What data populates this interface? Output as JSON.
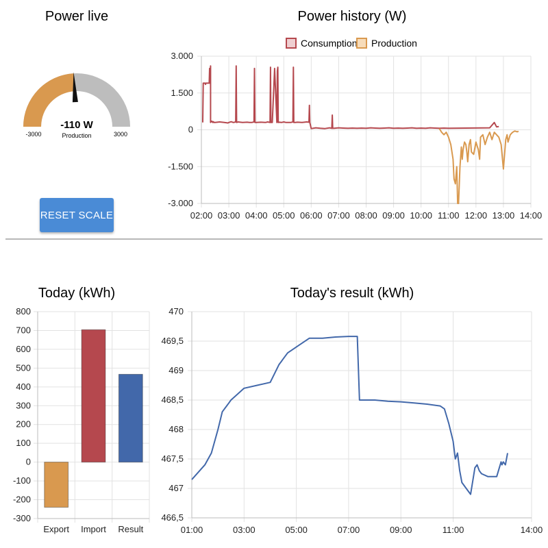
{
  "gauge": {
    "title": "Power live",
    "value_text": "-110 W",
    "sub_label": "Production",
    "min_label": "-3000",
    "max_label": "3000",
    "value": -110,
    "min": -3000,
    "max": 3000,
    "colors": {
      "fill": "#d9994f",
      "track": "#bdbdbd",
      "needle": "#111111"
    }
  },
  "reset_button": {
    "label": "RESET SCALE",
    "color": "#4a8bd6"
  },
  "chart_data": [
    {
      "id": "power_history",
      "type": "line",
      "title": "Power history (W)",
      "legend_position": "top-center",
      "grid": true,
      "x_ticks": [
        "02:00",
        "03:00",
        "04:00",
        "05:00",
        "06:00",
        "07:00",
        "08:00",
        "09:00",
        "10:00",
        "11:00",
        "12:00",
        "13:00",
        "14:00"
      ],
      "xlim": [
        "02:00",
        "14:00"
      ],
      "y_ticks": [
        "3.000",
        "1.500",
        "0",
        "-1.500",
        "-3.000"
      ],
      "ylim": [
        -3000,
        3000
      ],
      "series": [
        {
          "name": "Consumption",
          "color": "#b5484e",
          "fill": "#efcfd1",
          "x": [
            "02:03",
            "02:03",
            "02:04",
            "02:05",
            "02:06",
            "02:07",
            "02:08",
            "02:09",
            "02:10",
            "02:11",
            "02:12",
            "02:13",
            "02:14",
            "02:15",
            "02:16",
            "02:17",
            "02:18",
            "02:19",
            "02:20",
            "02:20",
            "02:22",
            "02:23",
            "02:25",
            "02:26",
            "02:28",
            "02:30",
            "02:40",
            "02:45",
            "02:50",
            "02:58",
            "03:00",
            "03:05",
            "03:10",
            "03:15",
            "03:16",
            "03:17",
            "03:20",
            "03:30",
            "03:40",
            "03:45",
            "03:50",
            "03:55",
            "03:56",
            "03:57",
            "04:00",
            "04:10",
            "04:20",
            "04:25",
            "04:30",
            "04:31",
            "04:32",
            "04:35",
            "04:40",
            "04:45",
            "04:46",
            "04:47",
            "04:48",
            "04:49",
            "04:50",
            "04:55",
            "05:00",
            "05:05",
            "05:10",
            "05:15",
            "05:20",
            "05:21",
            "05:22",
            "05:25",
            "05:30",
            "05:40",
            "05:50",
            "05:55",
            "05:56",
            "05:57",
            "06:00",
            "06:10",
            "06:20",
            "06:30",
            "06:40",
            "06:45",
            "06:46",
            "06:47",
            "06:50",
            "07:00",
            "07:10",
            "07:20",
            "07:30",
            "07:40",
            "07:50",
            "08:00",
            "08:10",
            "08:20",
            "08:30",
            "08:40",
            "08:50",
            "09:00",
            "09:10",
            "09:20",
            "09:30",
            "09:40",
            "09:50",
            "10:00",
            "10:10",
            "10:20",
            "10:30",
            "10:40",
            "10:50",
            "11:00",
            "12:30",
            "12:40",
            "12:45",
            "12:50"
          ],
          "y": [
            300,
            400,
            1900,
            1900,
            1900,
            1900,
            1900,
            1850,
            1900,
            1900,
            1900,
            1900,
            1900,
            1900,
            1900,
            1900,
            2500,
            1900,
            2600,
            300,
            350,
            350,
            300,
            330,
            300,
            300,
            320,
            310,
            300,
            280,
            300,
            330,
            300,
            320,
            2600,
            300,
            320,
            300,
            310,
            300,
            300,
            320,
            2500,
            300,
            300,
            310,
            300,
            320,
            300,
            2550,
            300,
            300,
            2500,
            300,
            2400,
            2550,
            300,
            300,
            310,
            300,
            320,
            300,
            300,
            300,
            320,
            2550,
            300,
            300,
            310,
            300,
            320,
            310,
            1000,
            300,
            50,
            80,
            60,
            50,
            80,
            60,
            600,
            60,
            60,
            80,
            70,
            60,
            70,
            60,
            70,
            60,
            80,
            70,
            60,
            70,
            80,
            60,
            70,
            60,
            70,
            80,
            60,
            70,
            60,
            80,
            70,
            60,
            70,
            60,
            80,
            300,
            120,
            130
          ]
        },
        {
          "name": "Production",
          "color": "#d9994f",
          "fill": "#f7dcba",
          "x": [
            "10:40",
            "10:45",
            "10:50",
            "10:55",
            "11:00",
            "11:05",
            "11:10",
            "11:12",
            "11:15",
            "11:18",
            "11:20",
            "11:22",
            "11:25",
            "11:28",
            "11:30",
            "11:32",
            "11:35",
            "11:38",
            "11:40",
            "11:42",
            "11:45",
            "11:48",
            "11:50",
            "11:55",
            "12:00",
            "12:05",
            "12:08",
            "12:10",
            "12:15",
            "12:20",
            "12:25",
            "12:30",
            "12:35",
            "12:40",
            "12:45",
            "12:50",
            "12:55",
            "13:00",
            "13:05",
            "13:08",
            "13:10",
            "13:15",
            "13:20",
            "13:25",
            "13:30",
            "13:33"
          ],
          "y": [
            50,
            -100,
            -200,
            -100,
            -300,
            -600,
            -1200,
            -2000,
            -2200,
            -1500,
            -3000,
            -3000,
            -1500,
            -700,
            -1200,
            -800,
            -500,
            -600,
            -900,
            -1300,
            -600,
            -400,
            -900,
            -1000,
            -500,
            -800,
            -1200,
            -300,
            -200,
            -600,
            -300,
            -100,
            -400,
            -100,
            -200,
            -300,
            -600,
            -1600,
            -400,
            -200,
            -500,
            -200,
            -100,
            -50,
            -80,
            -60
          ]
        }
      ]
    },
    {
      "id": "today",
      "type": "bar",
      "title": "Today (kWh)",
      "grid": true,
      "categories": [
        "Export",
        "Import",
        "Result"
      ],
      "values": [
        -240,
        704,
        467
      ],
      "colors": [
        "#d9994f",
        "#b5484e",
        "#4268aa"
      ],
      "y_ticks": [
        "800",
        "700",
        "600",
        "500",
        "400",
        "300",
        "200",
        "100",
        "0",
        "-100",
        "-200",
        "-300"
      ],
      "ylim": [
        -300,
        800
      ]
    },
    {
      "id": "result",
      "type": "line",
      "title": "Today's result (kWh)",
      "grid": true,
      "x_ticks": [
        "01:00",
        "03:00",
        "05:00",
        "07:00",
        "09:00",
        "11:00",
        "14:00"
      ],
      "xlim": [
        "01:00",
        "14:00"
      ],
      "y_ticks": [
        "470",
        "469,5",
        "469",
        "468,5",
        "468",
        "467,5",
        "467",
        "466,5"
      ],
      "ylim": [
        466.5,
        470
      ],
      "series": [
        {
          "color": "#4268aa",
          "x": [
            "01:00",
            "01:30",
            "01:45",
            "02:00",
            "02:10",
            "02:20",
            "02:25",
            "02:30",
            "02:45",
            "03:00",
            "03:30",
            "04:00",
            "04:20",
            "04:25",
            "04:30",
            "04:40",
            "05:00",
            "05:30",
            "06:00",
            "06:30",
            "07:00",
            "07:20",
            "07:25",
            "07:30",
            "08:00",
            "08:30",
            "09:00",
            "09:30",
            "10:00",
            "10:30",
            "10:40",
            "10:50",
            "11:00",
            "11:05",
            "11:10",
            "11:15",
            "11:20",
            "11:30",
            "11:40",
            "11:50",
            "11:55",
            "12:00",
            "12:05",
            "12:20",
            "12:40",
            "12:50",
            "12:52",
            "12:55",
            "13:00",
            "13:05"
          ],
          "y": [
            467.15,
            467.4,
            467.6,
            468.0,
            468.3,
            468.4,
            468.45,
            468.5,
            468.6,
            468.7,
            468.75,
            468.8,
            469.1,
            469.15,
            469.2,
            469.3,
            469.4,
            469.55,
            469.55,
            469.57,
            469.58,
            469.58,
            468.5,
            468.5,
            468.5,
            468.48,
            468.47,
            468.45,
            468.43,
            468.4,
            468.35,
            468.1,
            467.8,
            467.5,
            467.6,
            467.3,
            467.1,
            467.0,
            466.9,
            467.35,
            467.4,
            467.3,
            467.25,
            467.2,
            467.2,
            467.45,
            467.4,
            467.45,
            467.4,
            467.6
          ]
        }
      ]
    }
  ]
}
